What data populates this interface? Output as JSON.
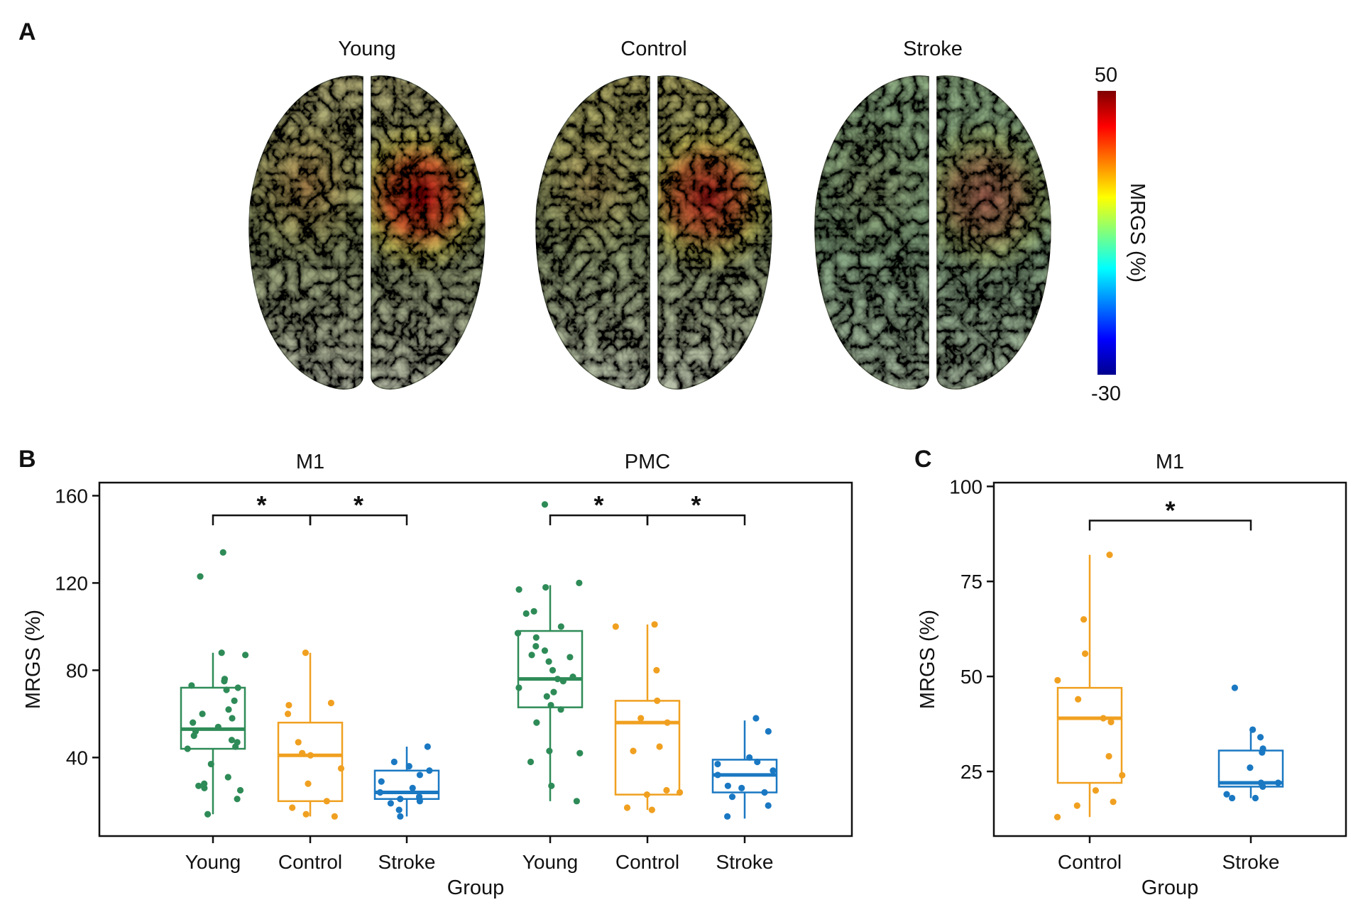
{
  "panel_a": {
    "label": "A",
    "brains": [
      {
        "title": "Young",
        "hot_intensity": 0.95,
        "left_intensity": 0.55,
        "base": "warm"
      },
      {
        "title": "Control",
        "hot_intensity": 0.8,
        "left_intensity": 0.35,
        "base": "olive"
      },
      {
        "title": "Stroke",
        "hot_intensity": 0.45,
        "left_intensity": 0.15,
        "base": "cool"
      }
    ],
    "colorbar": {
      "label": "MRGS (%)",
      "max_label": "50",
      "min_label": "-30",
      "colormap": "jet",
      "max": 50,
      "min": -30
    }
  },
  "panel_b": {
    "label": "B"
  },
  "panel_c": {
    "label": "C"
  },
  "colors": {
    "Young": "#2e8b57",
    "Control": "#f0a020",
    "Stroke": "#1a78c2"
  },
  "chart_data": [
    {
      "id": "B",
      "type": "box",
      "xlabel": "Group",
      "ylabel": "MRGS (%)",
      "ylim": [
        4,
        166
      ],
      "yticks": [
        40,
        80,
        120,
        160
      ],
      "facets": [
        {
          "title": "M1",
          "groups": [
            {
              "name": "Young",
              "q1": 44,
              "median": 53,
              "q3": 72,
              "whisker_low": 14,
              "whisker_high": 88,
              "points": [
                134,
                123,
                88,
                87,
                76,
                75,
                73,
                72,
                71,
                66,
                62,
                60,
                58,
                56,
                54,
                52,
                50,
                48,
                47,
                45,
                44,
                37,
                31,
                28,
                27,
                26,
                25,
                21,
                14
              ]
            },
            {
              "name": "Control",
              "q1": 20,
              "median": 41,
              "q3": 56,
              "whisker_low": 13,
              "whisker_high": 88,
              "points": [
                88,
                65,
                64,
                60,
                47,
                42,
                41,
                35,
                28,
                20,
                17,
                14,
                13
              ]
            },
            {
              "name": "Stroke",
              "q1": 21,
              "median": 24,
              "q3": 34,
              "whisker_low": 13,
              "whisker_high": 45,
              "points": [
                45,
                38,
                36,
                34,
                32,
                29,
                26,
                24,
                22,
                21,
                20,
                19,
                16,
                13
              ]
            }
          ],
          "comparisons": [
            {
              "from": "Young",
              "to": "Control",
              "label": "*",
              "y": 151
            },
            {
              "from": "Control",
              "to": "Stroke",
              "label": "*",
              "y": 151
            }
          ]
        },
        {
          "title": "PMC",
          "groups": [
            {
              "name": "Young",
              "q1": 63,
              "median": 76,
              "q3": 98,
              "whisker_low": 20,
              "whisker_high": 119,
              "points": [
                156,
                120,
                118,
                117,
                107,
                106,
                100,
                97,
                95,
                91,
                89,
                87,
                86,
                84,
                80,
                77,
                76,
                75,
                72,
                70,
                68,
                64,
                62,
                56,
                43,
                42,
                38,
                27,
                20
              ]
            },
            {
              "name": "Control",
              "q1": 23,
              "median": 56,
              "q3": 66,
              "whisker_low": 16,
              "whisker_high": 101,
              "points": [
                101,
                100,
                80,
                66,
                58,
                56,
                45,
                43,
                25,
                24,
                23,
                17,
                16
              ]
            },
            {
              "name": "Stroke",
              "q1": 24,
              "median": 32,
              "q3": 39,
              "whisker_low": 12,
              "whisker_high": 57,
              "points": [
                58,
                52,
                40,
                38,
                37,
                34,
                32,
                27,
                26,
                24,
                22,
                18,
                13
              ]
            }
          ],
          "comparisons": [
            {
              "from": "Young",
              "to": "Control",
              "label": "*",
              "y": 151
            },
            {
              "from": "Control",
              "to": "Stroke",
              "label": "*",
              "y": 151
            }
          ]
        }
      ]
    },
    {
      "id": "C",
      "type": "box",
      "xlabel": "Group",
      "ylabel": "MRGS (%)",
      "ylim": [
        8,
        101
      ],
      "yticks": [
        25,
        50,
        75,
        100
      ],
      "facets": [
        {
          "title": "M1",
          "groups": [
            {
              "name": "Control",
              "q1": 22,
              "median": 39,
              "q3": 47,
              "whisker_low": 13,
              "whisker_high": 82,
              "points": [
                82,
                65,
                56,
                49,
                44,
                39,
                38,
                29,
                24,
                20,
                17,
                16,
                13
              ]
            },
            {
              "name": "Stroke",
              "q1": 21,
              "median": 22,
              "q3": 30.5,
              "whisker_low": 18,
              "whisker_high": 36,
              "points": [
                47,
                36,
                34,
                31,
                30,
                26,
                22,
                22,
                21,
                19,
                18,
                18
              ]
            }
          ],
          "comparisons": [
            {
              "from": "Control",
              "to": "Stroke",
              "label": "*",
              "y": 91
            }
          ]
        }
      ]
    }
  ]
}
